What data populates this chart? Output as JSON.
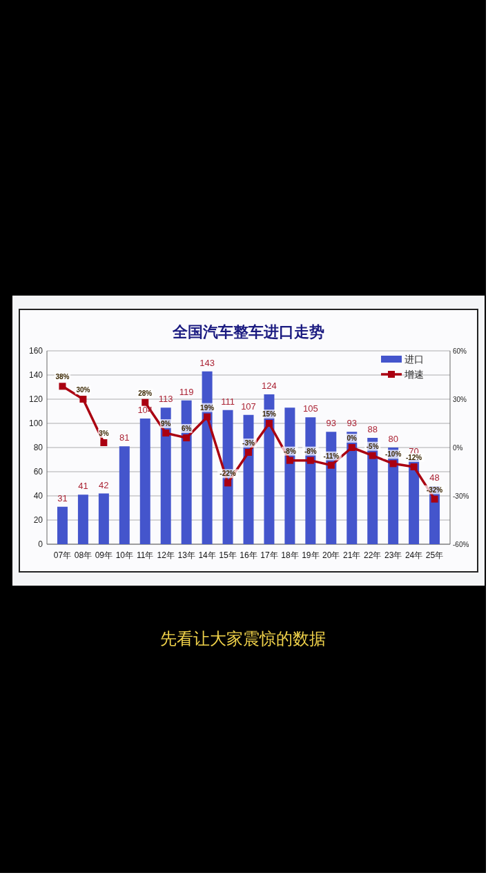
{
  "chart_data": {
    "type": "bar",
    "title": "全国汽车整车进口走势",
    "annotations": [
      "先看让大家震惊的数据"
    ],
    "categories": [
      "07年",
      "08年",
      "09年",
      "10年",
      "11年",
      "12年",
      "13年",
      "14年",
      "15年",
      "16年",
      "17年",
      "18年",
      "19年",
      "20年",
      "21年",
      "22年",
      "23年",
      "24年",
      "25年"
    ],
    "series": [
      {
        "name": "进口",
        "color": "#4455cc",
        "values": [
          31,
          41,
          42,
          81,
          104,
          113,
          119,
          143,
          111,
          107,
          124,
          113,
          105,
          93,
          93,
          88,
          80,
          70,
          48
        ],
        "value_labels": [
          "31",
          "41",
          "42",
          "81",
          "104",
          "113",
          "119",
          "143",
          "111",
          "107",
          "124",
          null,
          "105",
          "93",
          "93",
          "88",
          "80",
          "70",
          "48"
        ]
      },
      {
        "name": "增速",
        "type": "line",
        "axis": "y2",
        "color": "#aa0011",
        "marker": "square",
        "values": [
          38,
          30,
          3,
          null,
          28,
          9,
          6,
          19,
          -22,
          -3,
          15,
          -8,
          -8,
          -11,
          0,
          -5,
          -10,
          -12,
          -32
        ],
        "value_labels": [
          "38%",
          "30%",
          "3%",
          null,
          "28%",
          "9%",
          "6%",
          "19%",
          "-22%",
          "-3%",
          "15%",
          "-8%",
          "-8%",
          "-11%",
          "0%",
          "-5%",
          "-10%",
          "-12%",
          "-32%"
        ]
      }
    ],
    "ylim": [
      0,
      160
    ],
    "yticks": [
      0,
      20,
      40,
      60,
      80,
      100,
      120,
      140,
      160
    ],
    "y2lim": [
      -60,
      60
    ],
    "y2ticks": [
      {
        "value": -60,
        "label": "-60%"
      },
      {
        "value": -30,
        "label": "-30%"
      },
      {
        "value": 0,
        "label": "0%"
      },
      {
        "value": 30,
        "label": "30%"
      },
      {
        "value": 60,
        "label": "60%"
      }
    ],
    "grid": "y",
    "legend": "top right"
  }
}
